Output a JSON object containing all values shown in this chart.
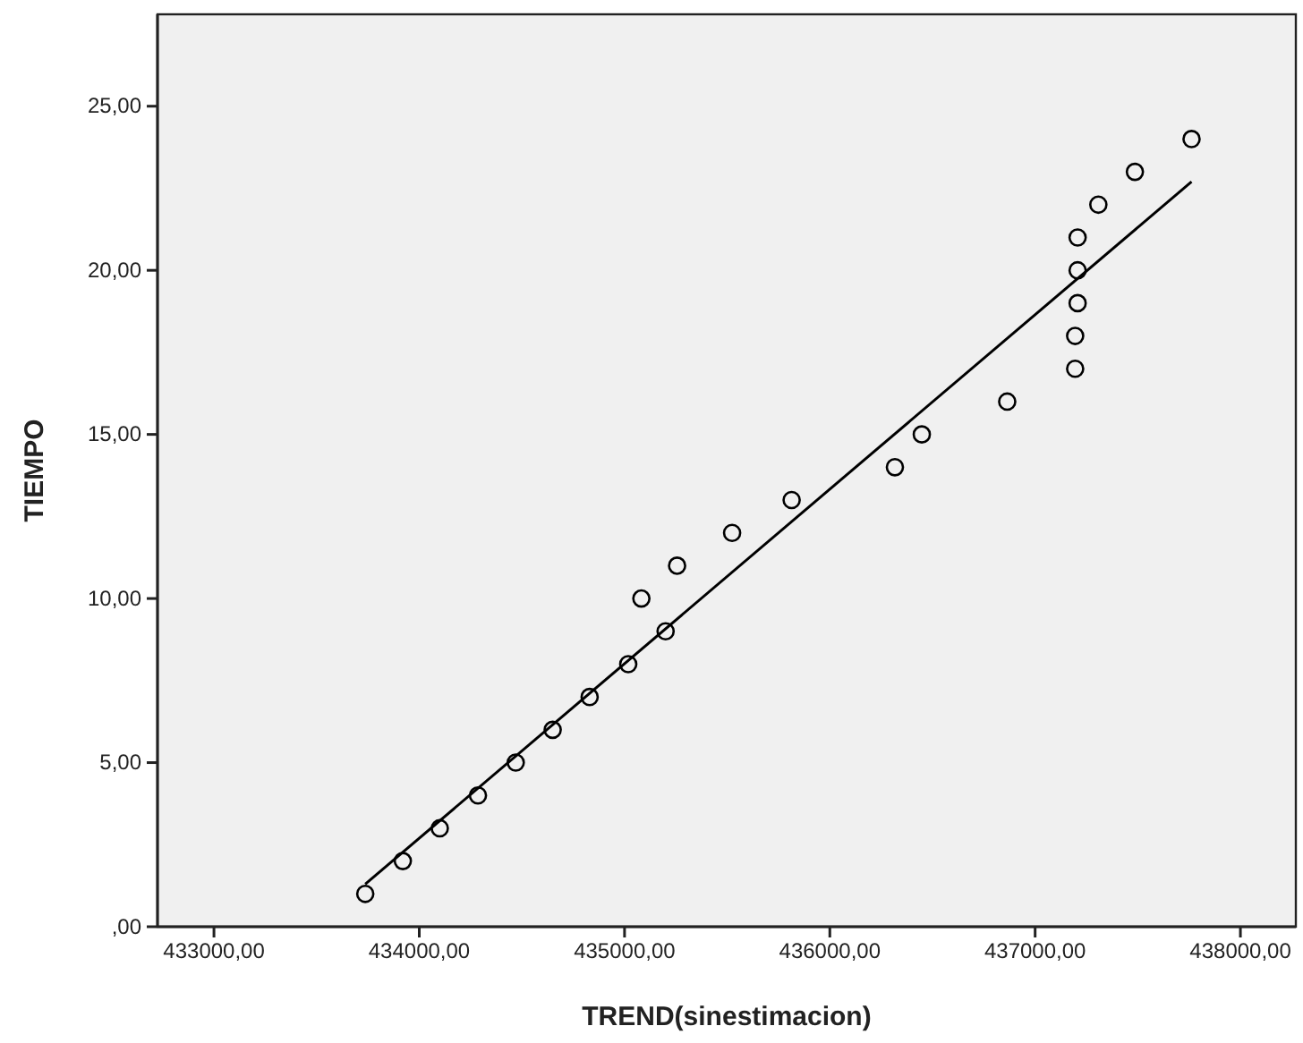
{
  "chart_data": {
    "type": "scatter",
    "xlabel": "TREND(sinestimacion)",
    "ylabel": "TIEMPO",
    "xlim": [
      432725,
      438270
    ],
    "ylim": [
      0,
      27.8
    ],
    "xticks": [
      {
        "value": 433000,
        "label": "433000,00"
      },
      {
        "value": 434000,
        "label": "434000,00"
      },
      {
        "value": 435000,
        "label": "435000,00"
      },
      {
        "value": 436000,
        "label": "436000,00"
      },
      {
        "value": 437000,
        "label": "437000,00"
      },
      {
        "value": 438000,
        "label": "438000,00"
      }
    ],
    "yticks": [
      {
        "value": 0,
        "label": ",00"
      },
      {
        "value": 5,
        "label": "5,00"
      },
      {
        "value": 10,
        "label": "10,00"
      },
      {
        "value": 15,
        "label": "15,00"
      },
      {
        "value": 20,
        "label": "20,00"
      },
      {
        "value": 25,
        "label": "25,00"
      }
    ],
    "grid": false,
    "marker": "circle",
    "series": [
      {
        "color": "#000000",
        "x": [
          433737,
          433920,
          434100,
          434286,
          434470,
          434650,
          434830,
          435018,
          435200,
          435082,
          435256,
          435524,
          435814,
          436317,
          436448,
          436864,
          437195,
          437195,
          437207,
          437207,
          437207,
          437308,
          437486,
          437762
        ],
        "values": [
          1,
          2,
          3,
          4,
          5,
          6,
          7,
          8,
          9,
          10,
          11,
          12,
          13,
          14,
          15,
          16,
          17,
          18,
          19,
          20,
          21,
          22,
          23,
          24
        ]
      },
      {
        "type": "line",
        "color": "#000000",
        "marker": "none",
        "line_style": "solid",
        "x": [
          433737,
          437762
        ],
        "values": [
          1.3,
          22.7
        ]
      }
    ]
  }
}
